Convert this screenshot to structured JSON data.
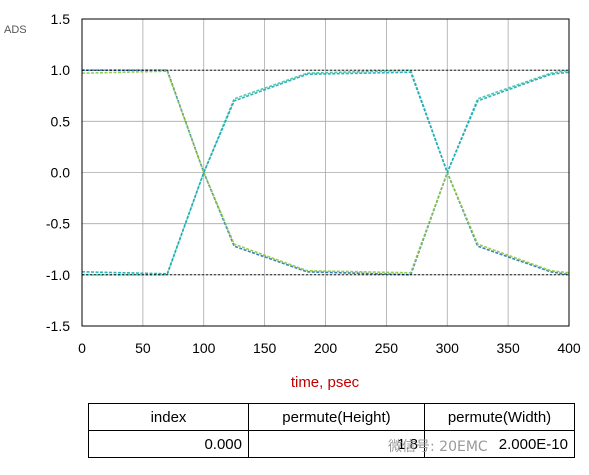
{
  "chart_data": {
    "type": "line",
    "title": "",
    "brand_label": "ADS",
    "xlabel": "time, psec",
    "ylabel": "",
    "xlim": [
      0,
      400
    ],
    "ylim": [
      -1.5,
      1.5
    ],
    "x_ticks": [
      "0",
      "50",
      "100",
      "150",
      "200",
      "250",
      "300",
      "350",
      "400"
    ],
    "y_ticks": [
      "1.5",
      "1.0",
      "0.5",
      "0.0",
      "-0.5",
      "-1.0",
      "-1.5"
    ],
    "grid": true,
    "series": [
      {
        "x": [
          0,
          70,
          100,
          125,
          185,
          270,
          300,
          325,
          385,
          400
        ],
        "y": [
          1.0,
          1.0,
          0.0,
          -0.72,
          -0.97,
          -1.0,
          0.0,
          -0.72,
          -0.97,
          -1.0
        ]
      },
      {
        "x": [
          0,
          70,
          100,
          125,
          185,
          270,
          300,
          325,
          385,
          400
        ],
        "y": [
          -1.0,
          -1.0,
          0.0,
          0.72,
          0.97,
          1.0,
          0.0,
          0.72,
          0.97,
          1.0
        ]
      },
      {
        "x": [
          0,
          70,
          100,
          125,
          185,
          270,
          300,
          325,
          385,
          400
        ],
        "y": [
          0.97,
          0.99,
          0.0,
          -0.7,
          -0.96,
          -0.98,
          0.0,
          -0.7,
          -0.96,
          -0.98
        ]
      },
      {
        "x": [
          0,
          70,
          100,
          125,
          185,
          270,
          300,
          325,
          385,
          400
        ],
        "y": [
          -0.97,
          -0.99,
          0.0,
          0.7,
          0.96,
          0.98,
          0.0,
          0.7,
          0.96,
          0.98
        ]
      },
      {
        "x": [
          0,
          400
        ],
        "y": [
          1.0,
          1.0
        ]
      },
      {
        "x": [
          0,
          400
        ],
        "y": [
          -1.0,
          -1.0
        ]
      }
    ]
  },
  "colors": {
    "trace": [
      "#1f77b4",
      "#3cc7a0",
      "#8cc63f",
      "#1aa7b8",
      "#000000",
      "#000000"
    ],
    "axis_label": "#c00000",
    "grid": "#a8a8a8",
    "brand": "#555555"
  },
  "table": {
    "headers": [
      "index",
      "permute(Height)",
      "permute(Width)"
    ],
    "values": [
      "0.000",
      "1.8",
      "2.000E-10"
    ]
  },
  "watermark": "微信号: 20EMC"
}
